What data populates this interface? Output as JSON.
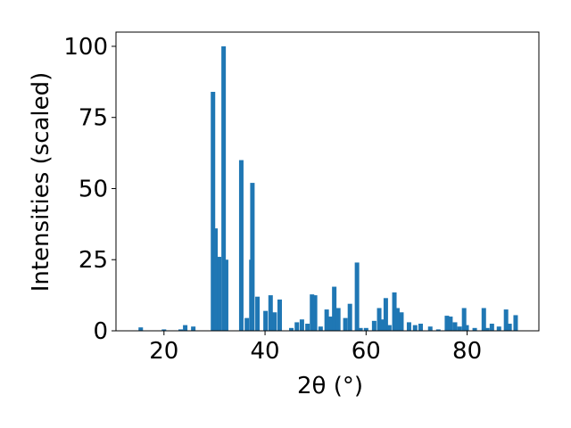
{
  "chart_data": {
    "type": "bar",
    "x_label": "2θ (°)",
    "y_label": "Intensities (scaled)",
    "x": [
      15.4,
      20.0,
      23.3,
      24.2,
      25.8,
      29.7,
      30.2,
      30.9,
      31.8,
      32.3,
      35.3,
      36.4,
      37.3,
      37.5,
      38.5,
      40.1,
      41.1,
      41.9,
      42.9,
      45.2,
      46.3,
      47.3,
      48.4,
      49.3,
      49.9,
      51.0,
      52.2,
      53.0,
      53.7,
      54.5,
      55.9,
      56.8,
      58.2,
      58.9,
      60.0,
      61.6,
      62.6,
      63.2,
      63.9,
      64.6,
      65.6,
      66.2,
      67.0,
      68.5,
      69.7,
      70.8,
      72.7,
      74.3,
      76.0,
      76.7,
      77.6,
      78.5,
      79.4,
      79.9,
      81.5,
      83.3,
      84.0,
      84.9,
      86.3,
      87.7,
      88.4,
      89.6
    ],
    "values": [
      1.2,
      0.5,
      0.5,
      2,
      1.5,
      84,
      36,
      26,
      100,
      25,
      60,
      4.5,
      25,
      52,
      12,
      7,
      12.5,
      6.5,
      11,
      1,
      3,
      4,
      2.5,
      12.8,
      12.5,
      1.5,
      7.5,
      5,
      15.5,
      8,
      4.5,
      9.5,
      24,
      1,
      1,
      3.5,
      8,
      4,
      11.5,
      2,
      13.5,
      8,
      6.5,
      3,
      2,
      2.5,
      1.5,
      0.5,
      5.3,
      5,
      3,
      1.5,
      8,
      2,
      1,
      8,
      1,
      2.5,
      1.5,
      7.5,
      2.5,
      5.5
    ],
    "color": "#1f77b4",
    "xlim": [
      10.5,
      94.2
    ],
    "xticks": [
      20,
      40,
      60,
      80
    ],
    "ylim": [
      0,
      105
    ],
    "yticks": [
      0,
      25,
      50,
      75,
      100
    ]
  }
}
